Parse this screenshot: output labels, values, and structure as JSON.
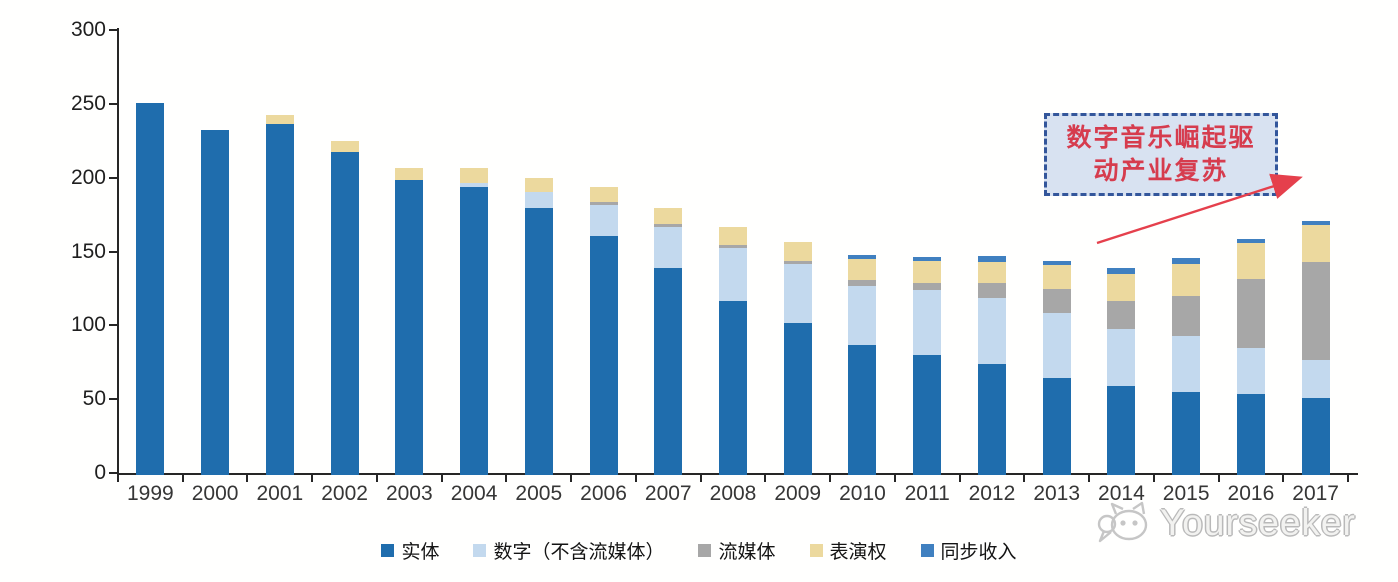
{
  "chart_data": {
    "type": "bar",
    "stacked": true,
    "categories": [
      "1999",
      "2000",
      "2001",
      "2002",
      "2003",
      "2004",
      "2005",
      "2006",
      "2007",
      "2008",
      "2009",
      "2010",
      "2011",
      "2012",
      "2013",
      "2014",
      "2015",
      "2016",
      "2017"
    ],
    "series": [
      {
        "key": "physical",
        "name": "实体",
        "color": "#1f6dad",
        "values": [
          252,
          234,
          238,
          219,
          200,
          195,
          181,
          162,
          140,
          118,
          103,
          88,
          81,
          75,
          66,
          60,
          56,
          55,
          52
        ]
      },
      {
        "key": "digital-excl-streaming",
        "name": "数字（不含流媒体）",
        "color": "#c3d9ee",
        "values": [
          0,
          0,
          0,
          0,
          0,
          3,
          11,
          21,
          28,
          36,
          40,
          40,
          44,
          45,
          44,
          39,
          38,
          31,
          26
        ]
      },
      {
        "key": "streaming",
        "name": "流媒体",
        "color": "#a7a7a7",
        "values": [
          0,
          0,
          0,
          0,
          0,
          0,
          0,
          2,
          2,
          2,
          2,
          4,
          5,
          10,
          16,
          19,
          27,
          47,
          66
        ]
      },
      {
        "key": "performance-rights",
        "name": "表演权",
        "color": "#ecd99e",
        "values": [
          0,
          0,
          6,
          7,
          8,
          10,
          9,
          10,
          11,
          12,
          13,
          14,
          15,
          14,
          16,
          18,
          22,
          24,
          25
        ]
      },
      {
        "key": "sync-revenue",
        "name": "同步收入",
        "color": "#4080c0",
        "values": [
          0,
          0,
          0,
          0,
          0,
          0,
          0,
          0,
          0,
          0,
          0,
          3,
          3,
          4,
          3,
          4,
          4,
          3,
          3
        ]
      }
    ],
    "title": "",
    "xlabel": "",
    "ylabel": "",
    "ylim": [
      0,
      300
    ],
    "yticks": [
      0,
      50,
      100,
      150,
      200,
      250,
      300
    ],
    "grid": false,
    "legend_position": "bottom"
  },
  "annotation": {
    "text": "数字音乐崛起驱动产业复苏",
    "lines": [
      "数字音乐崛起驱",
      "动产业复苏"
    ]
  },
  "watermark": {
    "text": "Yourseeker"
  },
  "colors": {
    "axis": "#262626",
    "annotation_border": "#33569b",
    "annotation_fill": "#d8e2f1",
    "annotation_text": "#d63c4e",
    "arrow": "#e5404c",
    "watermark": "#b9b9b9"
  }
}
